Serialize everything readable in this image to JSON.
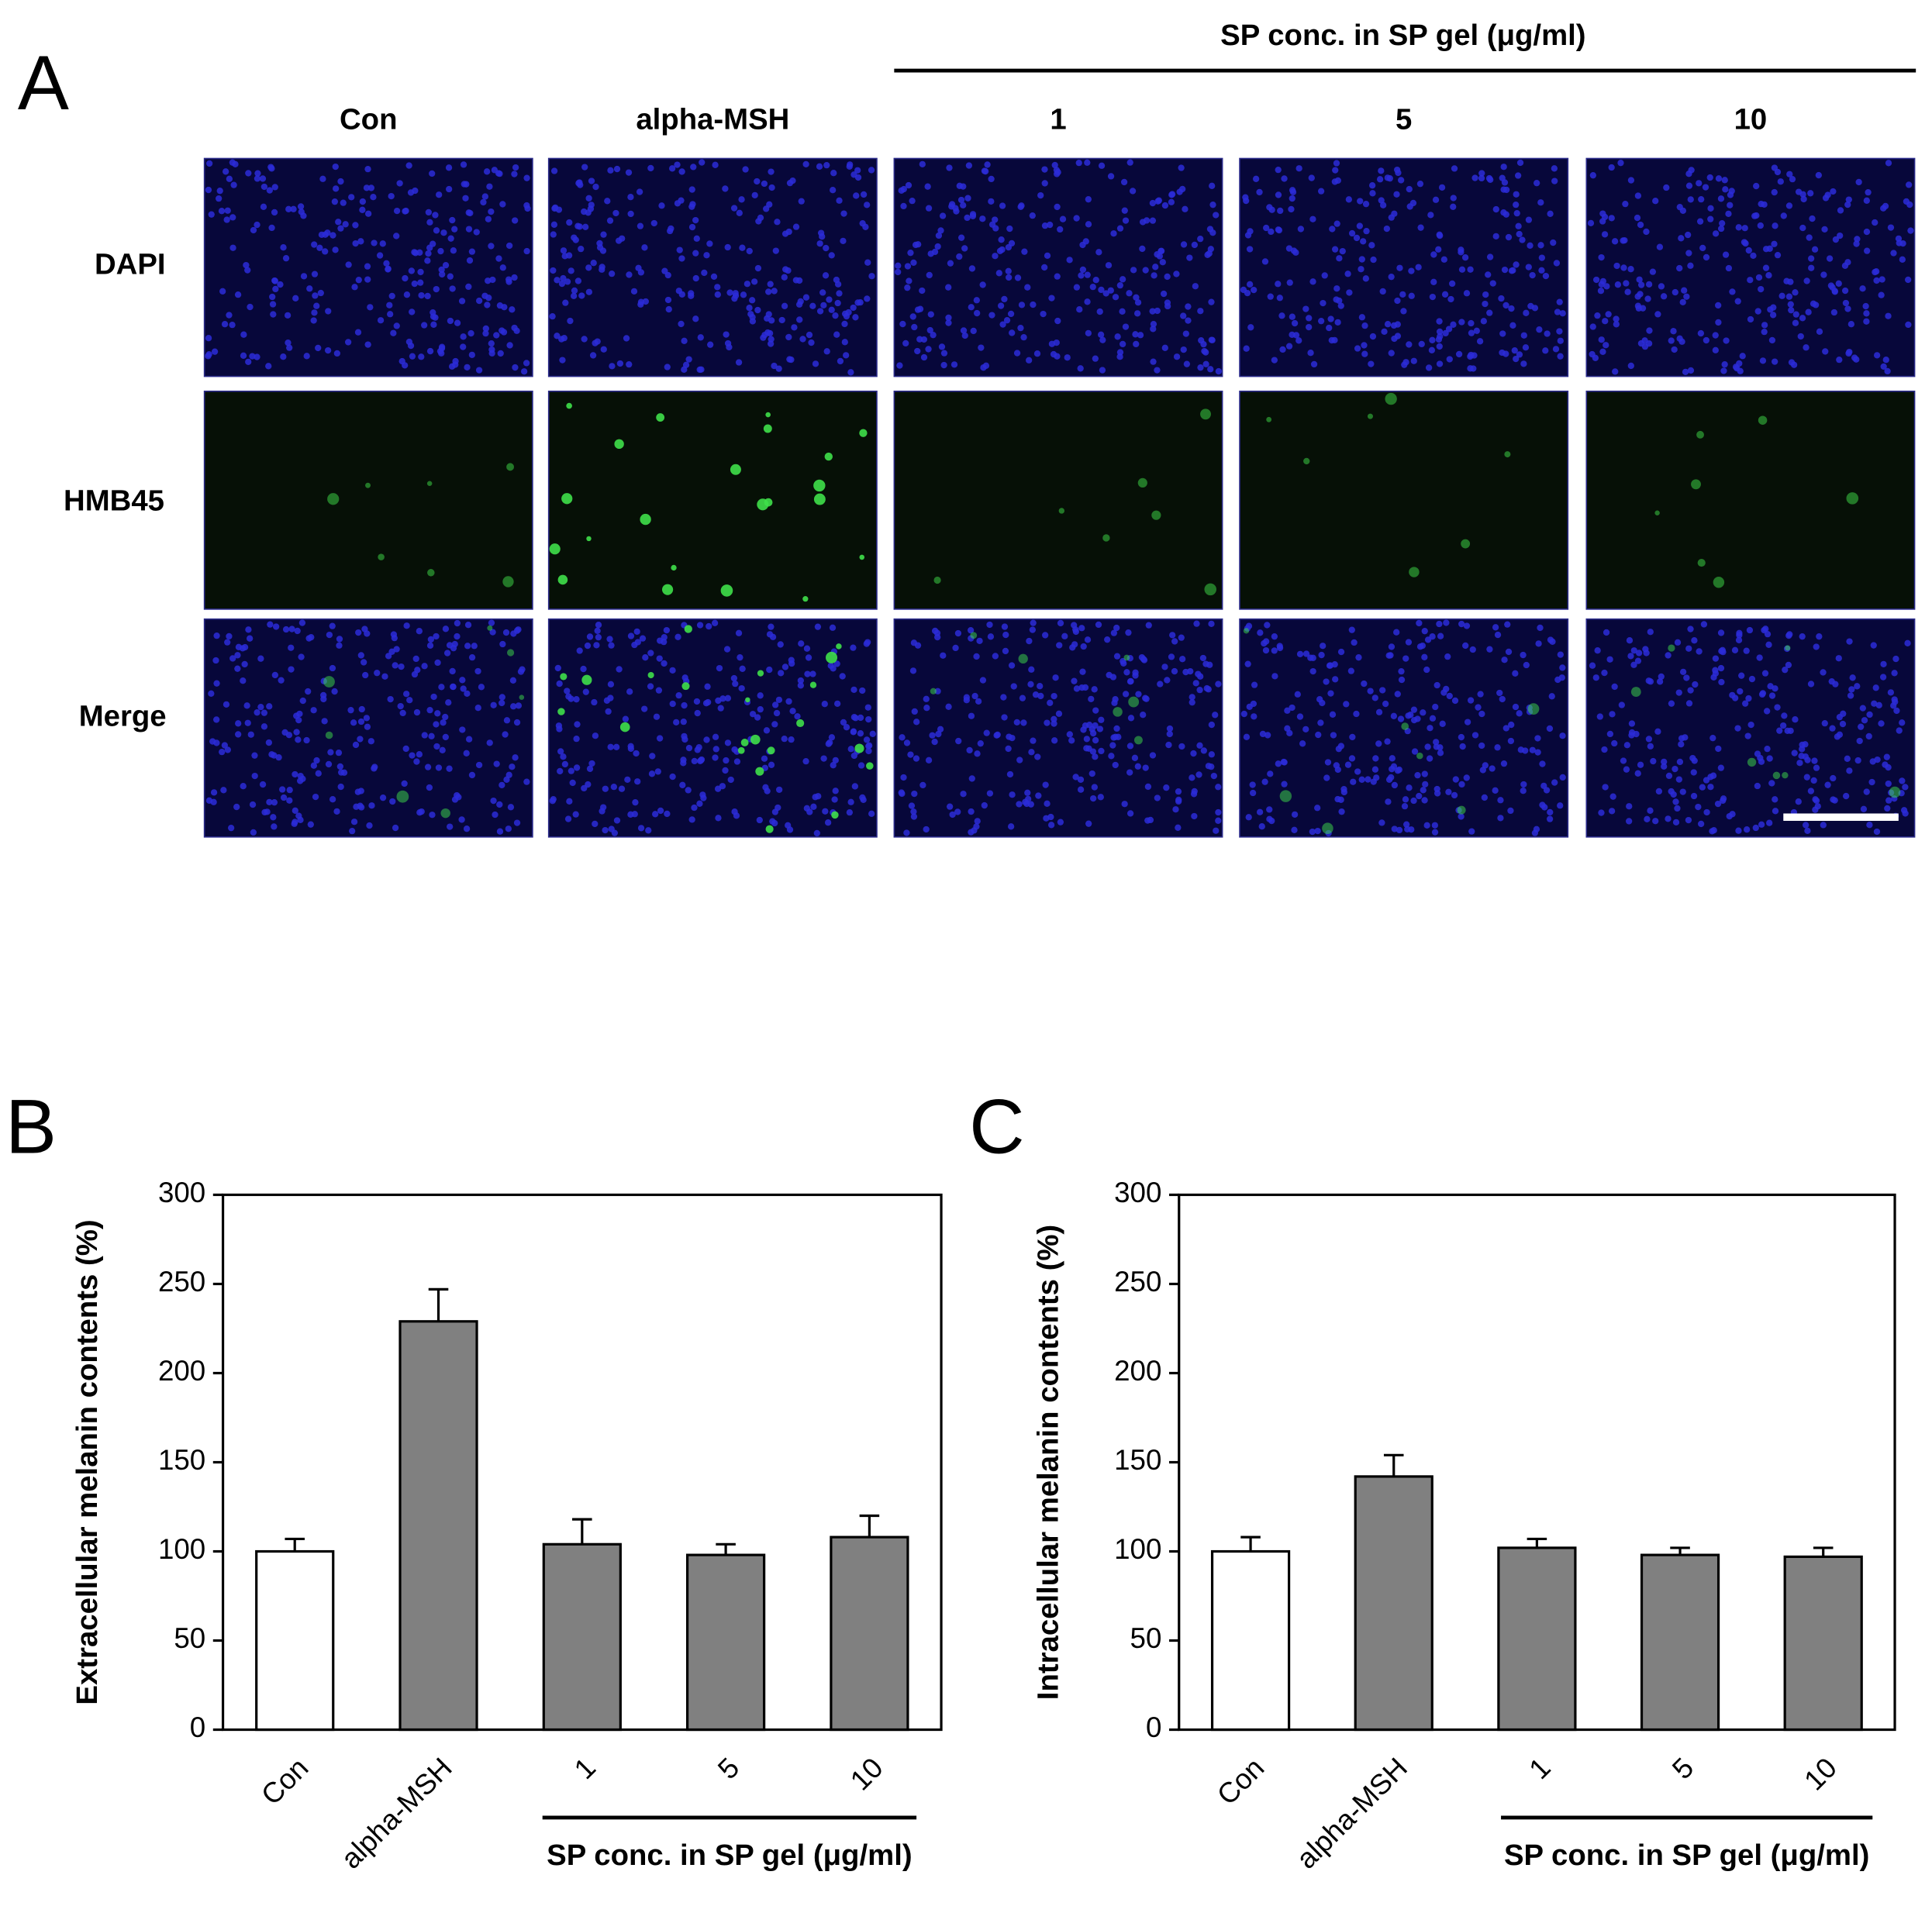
{
  "image_panel": {
    "label": "A",
    "group_label": "SP conc. in SP gel (μg/ml)",
    "columns": [
      "Con",
      "alpha-MSH",
      "1",
      "5",
      "10"
    ],
    "rows": [
      "DAPI",
      "HMB45",
      "Merge"
    ]
  },
  "chart_data": [
    {
      "type": "bar",
      "label": "B",
      "y_label": "Extracellular melanin contents (%)",
      "categories": [
        "Con",
        "alpha-MSH",
        "1",
        "5",
        "10"
      ],
      "values": [
        100,
        229,
        104,
        98,
        108
      ],
      "errors": [
        7,
        18,
        14,
        6,
        12
      ],
      "colors": [
        "#ffffff",
        "#808080",
        "#808080",
        "#808080",
        "#808080"
      ],
      "group_label": "SP conc. in SP gel (μg/ml)",
      "ylim": [
        0,
        300
      ],
      "yticks": [
        0,
        50,
        100,
        150,
        200,
        250,
        300
      ]
    },
    {
      "type": "bar",
      "label": "C",
      "y_label": "Intracellular melanin contents (%)",
      "categories": [
        "Con",
        "alpha-MSH",
        "1",
        "5",
        "10"
      ],
      "values": [
        100,
        142,
        102,
        98,
        97
      ],
      "errors": [
        8,
        12,
        5,
        4,
        5
      ],
      "colors": [
        "#ffffff",
        "#808080",
        "#808080",
        "#808080",
        "#808080"
      ],
      "group_label": "SP conc. in SP gel (μg/ml)",
      "ylim": [
        0,
        300
      ],
      "yticks": [
        0,
        50,
        100,
        150,
        200,
        250,
        300
      ]
    }
  ]
}
